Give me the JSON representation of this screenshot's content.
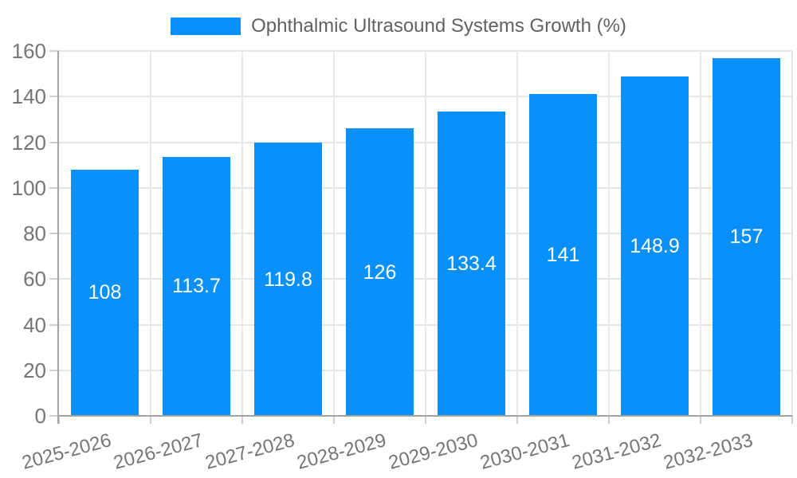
{
  "legend": {
    "items": [
      {
        "label": "Ophthalmic Ultrasound Systems Growth (%)",
        "color": "#0890F8"
      }
    ]
  },
  "chart_data": {
    "type": "bar",
    "categories": [
      "2025-2026",
      "2026-2027",
      "2027-2028",
      "2028-2029",
      "2029-2030",
      "2030-2031",
      "2031-2032",
      "2032-2033"
    ],
    "series": [
      {
        "name": "Ophthalmic Ultrasound Systems Growth (%)",
        "values": [
          108,
          113.7,
          119.8,
          126,
          133.4,
          141,
          148.9,
          157
        ],
        "color": "#0890F8",
        "value_label_color": "#ffffff"
      }
    ],
    "title": "",
    "xlabel": "",
    "ylabel": "",
    "ylim": [
      0,
      160
    ],
    "ytick_step": 20,
    "ytick_labels": [
      "0",
      "20",
      "40",
      "60",
      "80",
      "100",
      "120",
      "140",
      "160"
    ],
    "grid": true,
    "legend_position": "top",
    "x_label_rotation_deg": -15,
    "value_labels_position": "middle-of-bar"
  },
  "colors": {
    "background": "#ffffff",
    "bar": "#0890F8",
    "axis_line": "#a3a3a3",
    "tick": "#cfcfcf",
    "gridline": "#e5e5e5",
    "axis_label_text": "#757575",
    "legend_text": "#616161",
    "bar_label_text": "#ffffff"
  }
}
